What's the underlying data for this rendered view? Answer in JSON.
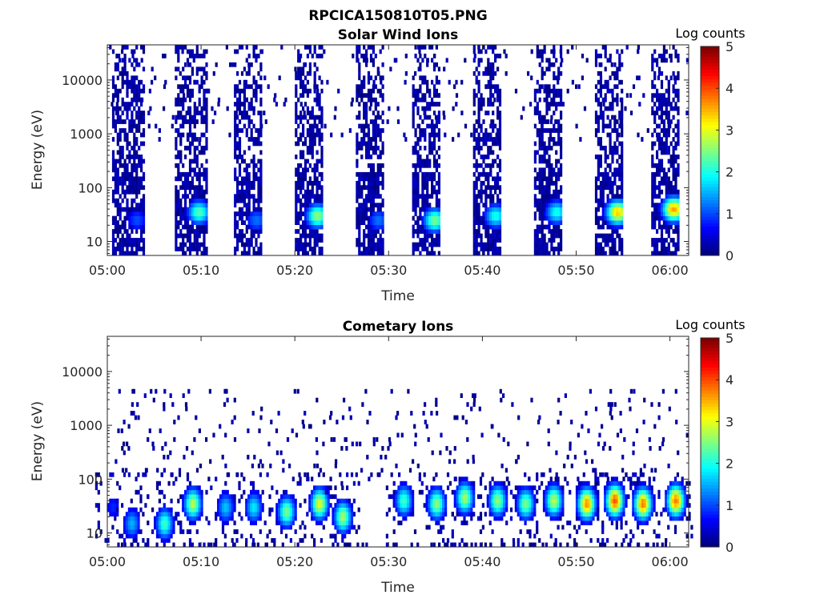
{
  "figure": {
    "title": "RPCICA150810T05.PNG"
  },
  "colorbar": {
    "label": "Log counts",
    "ticks": [
      "0",
      "1",
      "2",
      "3",
      "4",
      "5"
    ],
    "range": [
      0,
      5
    ],
    "colormap": "jet"
  },
  "chart_data": [
    {
      "type": "heatmap",
      "title": "Solar Wind Ions",
      "xlabel": "Time",
      "ylabel": "Energy (eV)",
      "x_ticks": [
        "05:00",
        "05:10",
        "05:20",
        "05:30",
        "05:40",
        "05:50",
        "06:00"
      ],
      "y_ticks": [
        "10",
        "100",
        "1000",
        "10000"
      ],
      "y_scale": "log",
      "x_range_minutes": [
        0,
        62
      ],
      "y_range_eV": [
        5.5,
        45000
      ],
      "color_range": [
        0,
        5
      ],
      "colorbar_label": "Log counts",
      "sweeps": [
        {
          "start": 0.5,
          "end": 4.0,
          "peak_energy": 25,
          "peak_log_counts": 1.0
        },
        {
          "start": 7.2,
          "end": 10.5,
          "peak_energy": 35,
          "peak_log_counts": 2.3
        },
        {
          "start": 13.5,
          "end": 16.5,
          "peak_energy": 25,
          "peak_log_counts": 1.2
        },
        {
          "start": 20.0,
          "end": 23.0,
          "peak_energy": 30,
          "peak_log_counts": 2.6
        },
        {
          "start": 26.5,
          "end": 29.5,
          "peak_energy": 25,
          "peak_log_counts": 1.2
        },
        {
          "start": 32.5,
          "end": 35.5,
          "peak_energy": 25,
          "peak_log_counts": 2.5
        },
        {
          "start": 39.0,
          "end": 42.0,
          "peak_energy": 30,
          "peak_log_counts": 2.0
        },
        {
          "start": 45.5,
          "end": 48.5,
          "peak_energy": 35,
          "peak_log_counts": 2.0
        },
        {
          "start": 52.0,
          "end": 55.0,
          "peak_energy": 35,
          "peak_log_counts": 3.4
        },
        {
          "start": 58.0,
          "end": 61.0,
          "peak_energy": 40,
          "peak_log_counts": 3.6
        }
      ]
    },
    {
      "type": "heatmap",
      "title": "Cometary Ions",
      "xlabel": "Time",
      "ylabel": "Energy (eV)",
      "x_ticks": [
        "05:00",
        "05:10",
        "05:20",
        "05:30",
        "05:40",
        "05:50",
        "06:00"
      ],
      "y_ticks": [
        "10",
        "100",
        "1000",
        "10000"
      ],
      "y_scale": "log",
      "x_range_minutes": [
        0,
        62
      ],
      "y_range_eV": [
        5.5,
        45000
      ],
      "color_range": [
        0,
        5
      ],
      "colorbar_label": "Log counts",
      "bursts": [
        {
          "center": 0.5,
          "peak_energy": 30,
          "peak_log_counts": 0.8
        },
        {
          "center": 2.5,
          "peak_energy": 15,
          "peak_log_counts": 1.5
        },
        {
          "center": 6.0,
          "peak_energy": 15,
          "peak_log_counts": 2.2
        },
        {
          "center": 9.0,
          "peak_energy": 35,
          "peak_log_counts": 2.8
        },
        {
          "center": 12.5,
          "peak_energy": 30,
          "peak_log_counts": 1.6
        },
        {
          "center": 15.5,
          "peak_energy": 30,
          "peak_log_counts": 1.8
        },
        {
          "center": 19.0,
          "peak_energy": 25,
          "peak_log_counts": 2.5
        },
        {
          "center": 22.5,
          "peak_energy": 35,
          "peak_log_counts": 3.0
        },
        {
          "center": 25.0,
          "peak_energy": 20,
          "peak_log_counts": 2.7
        },
        {
          "center": 31.5,
          "peak_energy": 40,
          "peak_log_counts": 2.2
        },
        {
          "center": 35.0,
          "peak_energy": 35,
          "peak_log_counts": 2.6
        },
        {
          "center": 38.0,
          "peak_energy": 45,
          "peak_log_counts": 2.7
        },
        {
          "center": 41.5,
          "peak_energy": 40,
          "peak_log_counts": 2.6
        },
        {
          "center": 44.5,
          "peak_energy": 35,
          "peak_log_counts": 2.5
        },
        {
          "center": 47.5,
          "peak_energy": 40,
          "peak_log_counts": 2.8
        },
        {
          "center": 51.0,
          "peak_energy": 35,
          "peak_log_counts": 3.7
        },
        {
          "center": 54.0,
          "peak_energy": 40,
          "peak_log_counts": 4.0
        },
        {
          "center": 57.0,
          "peak_energy": 35,
          "peak_log_counts": 3.8
        },
        {
          "center": 60.5,
          "peak_energy": 40,
          "peak_log_counts": 3.8
        }
      ]
    }
  ]
}
